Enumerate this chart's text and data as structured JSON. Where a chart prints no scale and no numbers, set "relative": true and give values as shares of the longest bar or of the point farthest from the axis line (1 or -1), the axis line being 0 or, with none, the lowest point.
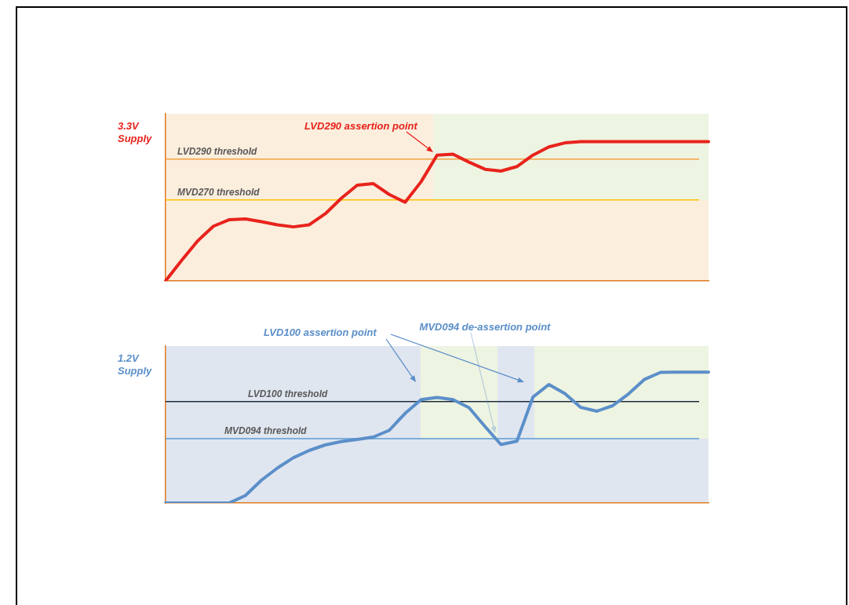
{
  "chart_data": [
    {
      "type": "line",
      "relative": true,
      "ylabel": "3.3V Supply",
      "legend": false,
      "grid": false,
      "marker": "none",
      "line_style": "solid",
      "tick_labels": false,
      "categories": [
        null,
        null,
        null,
        null,
        null,
        null,
        null,
        null,
        null,
        null,
        null,
        null,
        null,
        null,
        null,
        null,
        null,
        null,
        null,
        null,
        null,
        null,
        null,
        null,
        null,
        null,
        null,
        null,
        null,
        null,
        null,
        null,
        null,
        null,
        null
      ],
      "series": [
        {
          "color": "#e8231c",
          "values": [
            0,
            0.147,
            0.286,
            0.393,
            0.44,
            0.445,
            0.425,
            0.403,
            0.388,
            0.403,
            0.482,
            0.593,
            0.687,
            0.699,
            0.621,
            0.565,
            0.712,
            0.903,
            0.91,
            0.853,
            0.802,
            0.789,
            0.821,
            0.903,
            0.962,
            0.991,
            1,
            1,
            1,
            1,
            1,
            1,
            1,
            1,
            1
          ]
        }
      ],
      "ref_lines": [
        {
          "axis": "y",
          "value": 0.874,
          "label": "LVD290 threshold",
          "color": "#f4a040"
        },
        {
          "axis": "y",
          "value": 0.582,
          "label": "MVD270 threshold",
          "color": "#ffc000"
        }
      ],
      "annotations": [
        "LVD290 assertion point"
      ]
    },
    {
      "type": "line",
      "relative": true,
      "ylabel": "1.2V Supply",
      "legend": false,
      "grid": false,
      "marker": "none",
      "line_style": "solid",
      "tick_labels": false,
      "categories": [
        null,
        null,
        null,
        null,
        null,
        null,
        null,
        null,
        null,
        null,
        null,
        null,
        null,
        null,
        null,
        null,
        null,
        null,
        null,
        null,
        null,
        null,
        null,
        null,
        null,
        null,
        null,
        null,
        null,
        null,
        null,
        null,
        null,
        null,
        null
      ],
      "series": [
        {
          "color": "#5b8fc9",
          "values": [
            0,
            0,
            0,
            0,
            0.001,
            0.057,
            0.174,
            0.267,
            0.346,
            0.402,
            0.444,
            0.469,
            0.486,
            0.504,
            0.555,
            0.685,
            0.79,
            0.807,
            0.79,
            0.729,
            0.585,
            0.447,
            0.472,
            0.809,
            0.906,
            0.837,
            0.731,
            0.702,
            0.744,
            0.835,
            0.946,
            0.999,
            1,
            1,
            1
          ]
        }
      ],
      "ref_lines": [
        {
          "axis": "y",
          "value": 0.775,
          "label": "LVD100 threshold",
          "color": "#1f2d3d"
        },
        {
          "axis": "y",
          "value": 0.492,
          "label": "MVD094 threshold",
          "color": "#5b9bd5"
        }
      ],
      "annotations": [
        "LVD100 assertion point",
        "MVD094 de-assertion point"
      ]
    }
  ]
}
